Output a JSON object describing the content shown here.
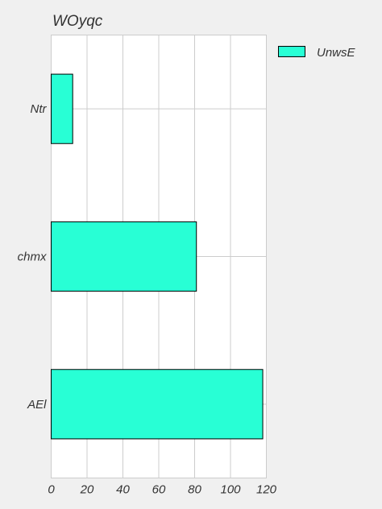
{
  "chart_data": {
    "type": "bar",
    "orientation": "horizontal",
    "title": "WOyqc",
    "xlabel": "",
    "ylabel": "",
    "categories": [
      "Ntr",
      "chmx",
      "AEl"
    ],
    "series": [
      {
        "name": "UnwsE",
        "values": [
          12,
          81,
          118
        ],
        "color": "#28ffd5"
      }
    ],
    "xlim": [
      0,
      120
    ],
    "xticks": [
      0,
      20,
      40,
      60,
      80,
      100,
      120
    ],
    "grid": true,
    "legend_position": "top-right-outside"
  }
}
